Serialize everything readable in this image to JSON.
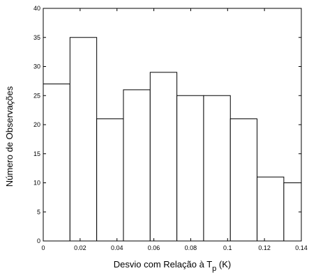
{
  "chart_data": {
    "type": "bar",
    "bin_edges": [
      0,
      0.0145,
      0.029,
      0.0435,
      0.058,
      0.0725,
      0.087,
      0.1015,
      0.116,
      0.1305,
      0.145
    ],
    "values": [
      27,
      35,
      21,
      26,
      29,
      25,
      25,
      21,
      11,
      10
    ],
    "xlim": [
      0,
      0.14
    ],
    "ylim": [
      0,
      40
    ],
    "xticks": [
      "0",
      "0.02",
      "0.04",
      "0.06",
      "0.08",
      "0.1",
      "0.12",
      "0.14"
    ],
    "yticks": [
      "0",
      "5",
      "10",
      "15",
      "20",
      "25",
      "30",
      "35",
      "40"
    ],
    "xlabel": {
      "main": "Desvio com Relação à T",
      "sub": "p",
      "suffix": " (K)"
    },
    "ylabel": "Número de Observações",
    "bar_fill": "#ffffff",
    "bar_stroke": "#000000"
  }
}
